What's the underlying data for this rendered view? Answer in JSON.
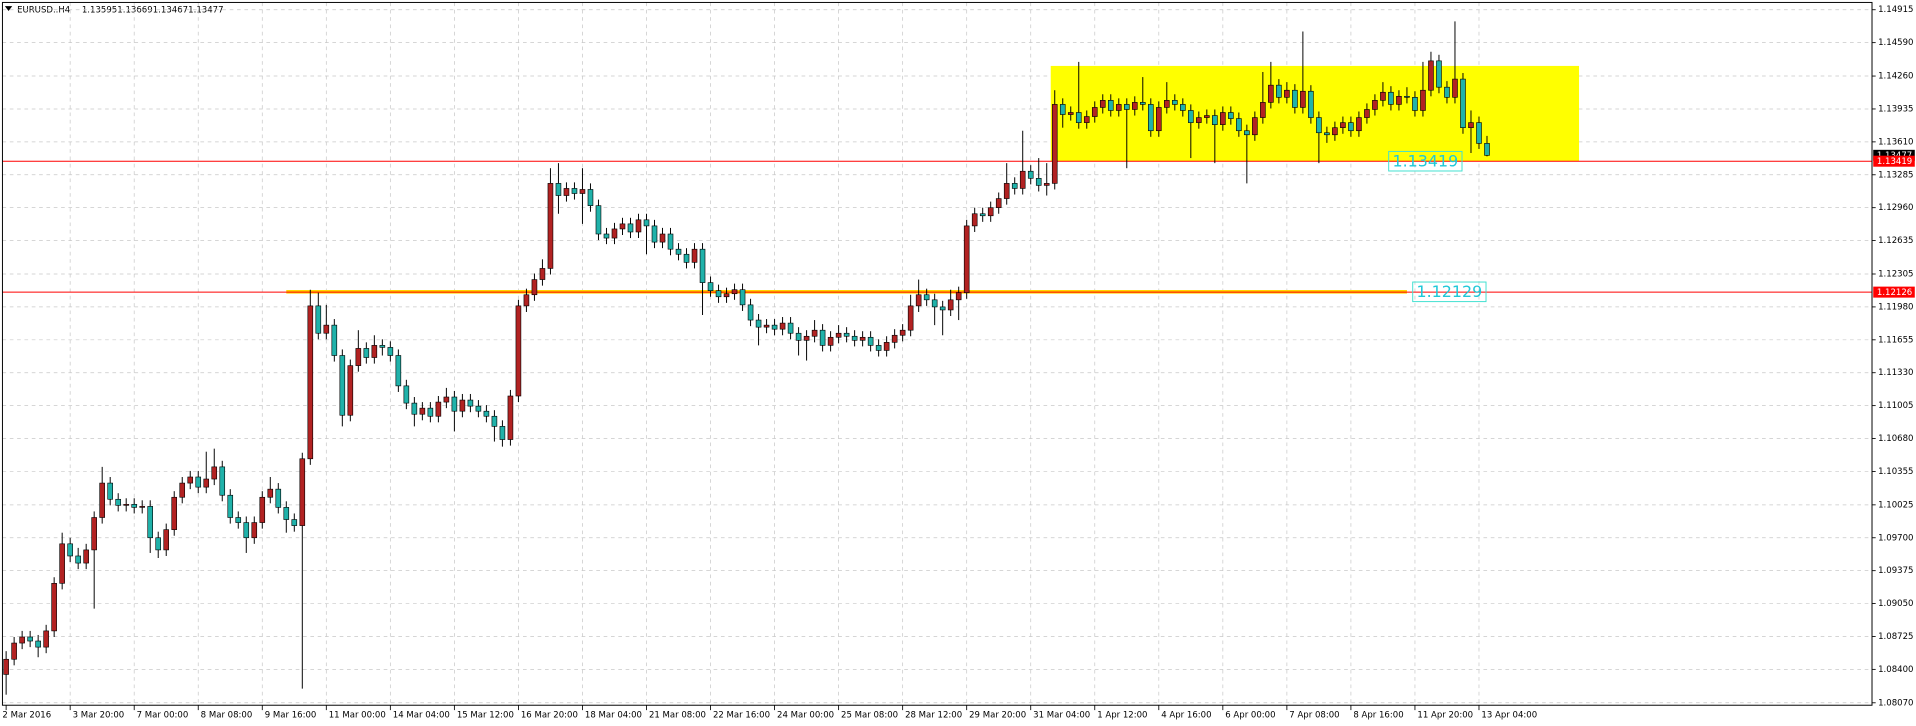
{
  "chart_data": {
    "type": "candlestick",
    "symbol": "EURUSD..H4",
    "up_color": "#b22222",
    "down_color": "#20b2aa",
    "grid": true,
    "xlim": [
      -0.46,
      233.1
    ],
    "ylim": [
      1.08046,
      1.14987
    ],
    "yticks": [
      {
        "value": 1.14915,
        "label": "1.14915"
      },
      {
        "value": 1.1459,
        "label": "1.14590"
      },
      {
        "value": 1.1426,
        "label": "1.14260"
      },
      {
        "value": 1.13935,
        "label": "1.13935"
      },
      {
        "value": 1.1361,
        "label": "1.13610"
      },
      {
        "value": 1.13285,
        "label": "1.13285"
      },
      {
        "value": 1.1296,
        "label": "1.12960"
      },
      {
        "value": 1.12635,
        "label": "1.12635"
      },
      {
        "value": 1.12305,
        "label": "1.12305"
      },
      {
        "value": 1.1198,
        "label": "1.11980"
      },
      {
        "value": 1.11655,
        "label": "1.11655"
      },
      {
        "value": 1.1133,
        "label": "1.11330"
      },
      {
        "value": 1.11005,
        "label": "1.11005"
      },
      {
        "value": 1.1068,
        "label": "1.10680"
      },
      {
        "value": 1.10355,
        "label": "1.10355"
      },
      {
        "value": 1.10025,
        "label": "1.10025"
      },
      {
        "value": 1.097,
        "label": "1.09700"
      },
      {
        "value": 1.09375,
        "label": "1.09375"
      },
      {
        "value": 1.0905,
        "label": "1.09050"
      },
      {
        "value": 1.08725,
        "label": "1.08725"
      },
      {
        "value": 1.084,
        "label": "1.08400"
      },
      {
        "value": 1.0807,
        "label": "1.08070"
      }
    ],
    "categories": [
      "2 Mar 2016",
      null,
      null,
      null,
      null,
      null,
      null,
      null,
      "3 Mar 20:00",
      null,
      null,
      null,
      null,
      null,
      null,
      null,
      "7 Mar 00:00",
      null,
      null,
      null,
      null,
      null,
      null,
      null,
      "8 Mar 08:00",
      null,
      null,
      null,
      null,
      null,
      null,
      null,
      "9 Mar 16:00",
      null,
      null,
      null,
      null,
      null,
      null,
      null,
      "11 Mar 00:00",
      null,
      null,
      null,
      null,
      null,
      null,
      null,
      "14 Mar 04:00",
      null,
      null,
      null,
      null,
      null,
      null,
      null,
      "15 Mar 12:00",
      null,
      null,
      null,
      null,
      null,
      null,
      null,
      "16 Mar 20:00",
      null,
      null,
      null,
      null,
      null,
      null,
      null,
      "18 Mar 04:00",
      null,
      null,
      null,
      null,
      null,
      null,
      null,
      "21 Mar 08:00",
      null,
      null,
      null,
      null,
      null,
      null,
      null,
      "22 Mar 16:00",
      null,
      null,
      null,
      null,
      null,
      null,
      null,
      "24 Mar 00:00",
      null,
      null,
      null,
      null,
      null,
      null,
      null,
      "25 Mar 08:00",
      null,
      null,
      null,
      null,
      null,
      null,
      null,
      "28 Mar 12:00",
      null,
      null,
      null,
      null,
      null,
      null,
      null,
      "29 Mar 20:00",
      null,
      null,
      null,
      null,
      null,
      null,
      null,
      "31 Mar 04:00",
      null,
      null,
      null,
      null,
      null,
      null,
      null,
      "1 Apr 12:00",
      null,
      null,
      null,
      null,
      null,
      null,
      null,
      "4 Apr 16:00",
      null,
      null,
      null,
      null,
      null,
      null,
      null,
      "6 Apr 00:00",
      null,
      null,
      null,
      null,
      null,
      null,
      null,
      "7 Apr 08:00",
      null,
      null,
      null,
      null,
      null,
      null,
      null,
      "8 Apr 16:00",
      null,
      null,
      null,
      null,
      null,
      null,
      null,
      "11 Apr 20:00",
      null,
      null,
      null,
      null,
      null,
      null,
      null,
      "13 Apr 04:00",
      null
    ],
    "ohlc": [
      [
        1.0835,
        1.0858,
        1.0815,
        1.085
      ],
      [
        1.085,
        1.0872,
        1.0844,
        1.0866
      ],
      [
        1.0866,
        1.0878,
        1.086,
        1.0872
      ],
      [
        1.0872,
        1.0878,
        1.0862,
        1.0868
      ],
      [
        1.0868,
        1.0874,
        1.0852,
        1.0862
      ],
      [
        1.0862,
        1.0884,
        1.0856,
        1.0878
      ],
      [
        1.0878,
        1.0931,
        1.0872,
        1.0925
      ],
      [
        1.0925,
        1.0975,
        1.0919,
        1.0964
      ],
      [
        1.0964,
        1.097,
        1.0946,
        1.0952
      ],
      [
        1.0952,
        1.096,
        1.0939,
        1.0945
      ],
      [
        1.0945,
        1.0964,
        1.0939,
        1.0958
      ],
      [
        1.0958,
        1.0996,
        1.09,
        1.099
      ],
      [
        1.099,
        1.104,
        1.0984,
        1.1024
      ],
      [
        1.1024,
        1.103,
        1.1002,
        1.1008
      ],
      [
        1.1008,
        1.1014,
        1.0996,
        1.1002
      ],
      [
        1.1002,
        1.1009,
        1.0996,
        1.1003
      ],
      [
        1.1003,
        1.1009,
        1.0994,
        1.1
      ],
      [
        1.1,
        1.1007,
        1.0994,
        1.1001
      ],
      [
        1.1001,
        1.1007,
        1.0955,
        1.097
      ],
      [
        1.097,
        1.0976,
        1.095,
        1.0958
      ],
      [
        1.0958,
        1.0984,
        1.0952,
        1.0978
      ],
      [
        1.0978,
        1.1016,
        1.0972,
        1.101
      ],
      [
        1.101,
        1.103,
        1.1004,
        1.1024
      ],
      [
        1.1024,
        1.1036,
        1.1018,
        1.103
      ],
      [
        1.103,
        1.1036,
        1.1014,
        1.102
      ],
      [
        1.102,
        1.1055,
        1.1014,
        1.1028
      ],
      [
        1.1028,
        1.1058,
        1.1022,
        1.104
      ],
      [
        1.104,
        1.1046,
        1.1006,
        1.1012
      ],
      [
        1.1012,
        1.1018,
        1.0984,
        1.099
      ],
      [
        1.099,
        1.0996,
        1.0979,
        1.0985
      ],
      [
        1.0985,
        1.0991,
        1.0955,
        1.097
      ],
      [
        1.097,
        1.0991,
        1.0964,
        1.0985
      ],
      [
        1.0985,
        1.1016,
        1.0979,
        1.101
      ],
      [
        1.101,
        1.103,
        1.1004,
        1.1018
      ],
      [
        1.1018,
        1.1024,
        1.0994,
        1.1
      ],
      [
        1.1,
        1.1006,
        1.0975,
        1.0988
      ],
      [
        1.0988,
        1.0994,
        1.0976,
        1.0982
      ],
      [
        1.0982,
        1.1054,
        1.0821,
        1.1048
      ],
      [
        1.1048,
        1.1215,
        1.1042,
        1.1199
      ],
      [
        1.1199,
        1.1212,
        1.1166,
        1.1172
      ],
      [
        1.1172,
        1.12,
        1.1166,
        1.118
      ],
      [
        1.118,
        1.1186,
        1.1144,
        1.115
      ],
      [
        1.115,
        1.1156,
        1.108,
        1.1091
      ],
      [
        1.1091,
        1.1146,
        1.1085,
        1.114
      ],
      [
        1.114,
        1.1175,
        1.1134,
        1.1157
      ],
      [
        1.1157,
        1.1163,
        1.1142,
        1.1148
      ],
      [
        1.1148,
        1.117,
        1.1142,
        1.116
      ],
      [
        1.116,
        1.1166,
        1.115,
        1.1158
      ],
      [
        1.1158,
        1.1164,
        1.1144,
        1.115
      ],
      [
        1.115,
        1.1156,
        1.1114,
        1.112
      ],
      [
        1.112,
        1.1126,
        1.1097,
        1.1103
      ],
      [
        1.1103,
        1.1109,
        1.108,
        1.1092
      ],
      [
        1.1092,
        1.1104,
        1.1086,
        1.1098
      ],
      [
        1.1098,
        1.1104,
        1.1084,
        1.109
      ],
      [
        1.109,
        1.111,
        1.1084,
        1.1104
      ],
      [
        1.1104,
        1.1118,
        1.1098,
        1.1109
      ],
      [
        1.1109,
        1.1115,
        1.1075,
        1.1095
      ],
      [
        1.1095,
        1.1112,
        1.1089,
        1.1106
      ],
      [
        1.1106,
        1.1112,
        1.1094,
        1.11
      ],
      [
        1.11,
        1.1106,
        1.1089,
        1.1095
      ],
      [
        1.1095,
        1.1101,
        1.1084,
        1.109
      ],
      [
        1.109,
        1.1096,
        1.1065,
        1.108
      ],
      [
        1.108,
        1.1086,
        1.106,
        1.1067
      ],
      [
        1.1067,
        1.1116,
        1.1061,
        1.111
      ],
      [
        1.111,
        1.1205,
        1.1104,
        1.1199
      ],
      [
        1.1199,
        1.1216,
        1.1193,
        1.121
      ],
      [
        1.121,
        1.1231,
        1.1204,
        1.1225
      ],
      [
        1.1225,
        1.1245,
        1.1219,
        1.1236
      ],
      [
        1.1236,
        1.1335,
        1.123,
        1.132
      ],
      [
        1.132,
        1.134,
        1.129,
        1.1308
      ],
      [
        1.1308,
        1.1321,
        1.1302,
        1.1315
      ],
      [
        1.1315,
        1.1321,
        1.1304,
        1.131
      ],
      [
        1.131,
        1.1335,
        1.128,
        1.1314
      ],
      [
        1.1314,
        1.132,
        1.1292,
        1.1298
      ],
      [
        1.1298,
        1.1304,
        1.1264,
        1.127
      ],
      [
        1.127,
        1.1276,
        1.126,
        1.1266
      ],
      [
        1.1266,
        1.1281,
        1.126,
        1.1275
      ],
      [
        1.1275,
        1.1286,
        1.1269,
        1.128
      ],
      [
        1.128,
        1.1286,
        1.1266,
        1.1272
      ],
      [
        1.1272,
        1.129,
        1.1266,
        1.1284
      ],
      [
        1.1284,
        1.129,
        1.125,
        1.1278
      ],
      [
        1.1278,
        1.1284,
        1.1256,
        1.1262
      ],
      [
        1.1262,
        1.1276,
        1.1256,
        1.127
      ],
      [
        1.127,
        1.1276,
        1.1249,
        1.1255
      ],
      [
        1.1255,
        1.1261,
        1.1244,
        1.125
      ],
      [
        1.125,
        1.1256,
        1.1236,
        1.1242
      ],
      [
        1.1242,
        1.1261,
        1.1236,
        1.1255
      ],
      [
        1.1255,
        1.1261,
        1.119,
        1.1222
      ],
      [
        1.1222,
        1.1228,
        1.1208,
        1.1214
      ],
      [
        1.1214,
        1.122,
        1.1202,
        1.1208
      ],
      [
        1.1208,
        1.1217,
        1.1202,
        1.1211
      ],
      [
        1.1211,
        1.1221,
        1.1205,
        1.1215
      ],
      [
        1.1215,
        1.1221,
        1.1194,
        1.12
      ],
      [
        1.12,
        1.1206,
        1.1179,
        1.1185
      ],
      [
        1.1185,
        1.1191,
        1.116,
        1.1178
      ],
      [
        1.1178,
        1.1186,
        1.1172,
        1.118
      ],
      [
        1.118,
        1.1186,
        1.117,
        1.1176
      ],
      [
        1.1176,
        1.1188,
        1.117,
        1.1182
      ],
      [
        1.1182,
        1.1188,
        1.1166,
        1.1172
      ],
      [
        1.1172,
        1.1178,
        1.115,
        1.1165
      ],
      [
        1.1165,
        1.1175,
        1.1145,
        1.1169
      ],
      [
        1.1169,
        1.1185,
        1.1163,
        1.1175
      ],
      [
        1.1175,
        1.1181,
        1.1154,
        1.116
      ],
      [
        1.116,
        1.1174,
        1.1154,
        1.1168
      ],
      [
        1.1168,
        1.118,
        1.1162,
        1.1172
      ],
      [
        1.1172,
        1.1178,
        1.1163,
        1.1169
      ],
      [
        1.1169,
        1.1175,
        1.1159,
        1.1165
      ],
      [
        1.1165,
        1.1174,
        1.1159,
        1.1168
      ],
      [
        1.1168,
        1.1174,
        1.1154,
        1.116
      ],
      [
        1.116,
        1.1166,
        1.1149,
        1.1155
      ],
      [
        1.1155,
        1.1169,
        1.1149,
        1.1163
      ],
      [
        1.1163,
        1.1176,
        1.1157,
        1.117
      ],
      [
        1.117,
        1.1181,
        1.1164,
        1.1175
      ],
      [
        1.1175,
        1.121,
        1.1169,
        1.1199
      ],
      [
        1.1199,
        1.1225,
        1.1193,
        1.121
      ],
      [
        1.121,
        1.1216,
        1.1199,
        1.1205
      ],
      [
        1.1205,
        1.1211,
        1.118,
        1.1198
      ],
      [
        1.1198,
        1.1204,
        1.117,
        1.1195
      ],
      [
        1.1195,
        1.1215,
        1.1189,
        1.1205
      ],
      [
        1.1205,
        1.1218,
        1.1185,
        1.1212
      ],
      [
        1.1212,
        1.1284,
        1.1206,
        1.1278
      ],
      [
        1.1278,
        1.1296,
        1.1272,
        1.129
      ],
      [
        1.129,
        1.1296,
        1.1282,
        1.1288
      ],
      [
        1.1288,
        1.1302,
        1.1282,
        1.1296
      ],
      [
        1.1296,
        1.1311,
        1.129,
        1.1305
      ],
      [
        1.1305,
        1.134,
        1.1299,
        1.132
      ],
      [
        1.132,
        1.1326,
        1.1309,
        1.1315
      ],
      [
        1.1315,
        1.1372,
        1.1309,
        1.1332
      ],
      [
        1.1332,
        1.1338,
        1.1319,
        1.1325
      ],
      [
        1.1325,
        1.1345,
        1.1312,
        1.1318
      ],
      [
        1.1318,
        1.134,
        1.1308,
        1.132
      ],
      [
        1.132,
        1.1412,
        1.1314,
        1.1398
      ],
      [
        1.1398,
        1.1404,
        1.1375,
        1.1388
      ],
      [
        1.1388,
        1.1396,
        1.1382,
        1.139
      ],
      [
        1.139,
        1.144,
        1.1374,
        1.138
      ],
      [
        1.138,
        1.1392,
        1.1374,
        1.1386
      ],
      [
        1.1386,
        1.1401,
        1.138,
        1.1395
      ],
      [
        1.1395,
        1.1408,
        1.1389,
        1.1402
      ],
      [
        1.1402,
        1.1408,
        1.1386,
        1.1392
      ],
      [
        1.1392,
        1.1404,
        1.1386,
        1.1398
      ],
      [
        1.1398,
        1.1404,
        1.1335,
        1.1393
      ],
      [
        1.1393,
        1.1406,
        1.1387,
        1.14
      ],
      [
        1.14,
        1.1425,
        1.1392,
        1.1398
      ],
      [
        1.1398,
        1.1404,
        1.1366,
        1.1372
      ],
      [
        1.1372,
        1.1401,
        1.1366,
        1.1395
      ],
      [
        1.1395,
        1.142,
        1.1389,
        1.1402
      ],
      [
        1.1402,
        1.1408,
        1.1392,
        1.1398
      ],
      [
        1.1398,
        1.1404,
        1.1386,
        1.1392
      ],
      [
        1.1392,
        1.1398,
        1.1345,
        1.138
      ],
      [
        1.138,
        1.1391,
        1.1374,
        1.1385
      ],
      [
        1.1385,
        1.1393,
        1.1379,
        1.1387
      ],
      [
        1.1387,
        1.1393,
        1.134,
        1.1378
      ],
      [
        1.1378,
        1.1396,
        1.1372,
        1.139
      ],
      [
        1.139,
        1.1396,
        1.1378,
        1.1384
      ],
      [
        1.1384,
        1.139,
        1.1366,
        1.1372
      ],
      [
        1.1372,
        1.1378,
        1.132,
        1.1368
      ],
      [
        1.1368,
        1.1391,
        1.1362,
        1.1385
      ],
      [
        1.1385,
        1.143,
        1.1379,
        1.14
      ],
      [
        1.14,
        1.144,
        1.1394,
        1.1417
      ],
      [
        1.1417,
        1.1423,
        1.1399,
        1.1405
      ],
      [
        1.1405,
        1.142,
        1.1399,
        1.1412
      ],
      [
        1.1412,
        1.1418,
        1.1389,
        1.1395
      ],
      [
        1.1395,
        1.147,
        1.1389,
        1.1411
      ],
      [
        1.1411,
        1.1417,
        1.1379,
        1.1385
      ],
      [
        1.1385,
        1.1391,
        1.134,
        1.137
      ],
      [
        1.137,
        1.1376,
        1.136,
        1.1368
      ],
      [
        1.1368,
        1.1381,
        1.1362,
        1.1375
      ],
      [
        1.1375,
        1.1386,
        1.1369,
        1.138
      ],
      [
        1.138,
        1.1386,
        1.1366,
        1.1372
      ],
      [
        1.1372,
        1.1391,
        1.1366,
        1.1385
      ],
      [
        1.1385,
        1.1399,
        1.1379,
        1.1393
      ],
      [
        1.1393,
        1.1408,
        1.1387,
        1.1402
      ],
      [
        1.1402,
        1.142,
        1.1396,
        1.141
      ],
      [
        1.141,
        1.1416,
        1.1392,
        1.1398
      ],
      [
        1.1398,
        1.1412,
        1.1392,
        1.1406
      ],
      [
        1.1406,
        1.1415,
        1.1399,
        1.1405
      ],
      [
        1.1405,
        1.1411,
        1.1386,
        1.1392
      ],
      [
        1.1392,
        1.144,
        1.1386,
        1.1412
      ],
      [
        1.1412,
        1.145,
        1.1406,
        1.1441
      ],
      [
        1.1441,
        1.1447,
        1.1409,
        1.1415
      ],
      [
        1.1415,
        1.1421,
        1.1399,
        1.1405
      ],
      [
        1.1405,
        1.148,
        1.1399,
        1.1423
      ],
      [
        1.1423,
        1.1429,
        1.1369,
        1.1375
      ],
      [
        1.1375,
        1.1392,
        1.135,
        1.138
      ],
      [
        1.138,
        1.1386,
        1.1354,
        1.13595
      ],
      [
        1.13595,
        1.13669,
        1.13467,
        1.13477
      ]
    ],
    "zone": {
      "top": 1.1436,
      "bottom": 1.1342,
      "start": 130.5,
      "end": 196.5,
      "color": "#ffff00"
    },
    "level_line": {
      "value": 1.12129,
      "start": 35,
      "end": 175,
      "color": "#ffd700"
    },
    "hlines": [
      {
        "value": 1.13419,
        "color": "#ff0000"
      },
      {
        "value": 1.12126,
        "color": "#ff0000"
      }
    ]
  }
}
